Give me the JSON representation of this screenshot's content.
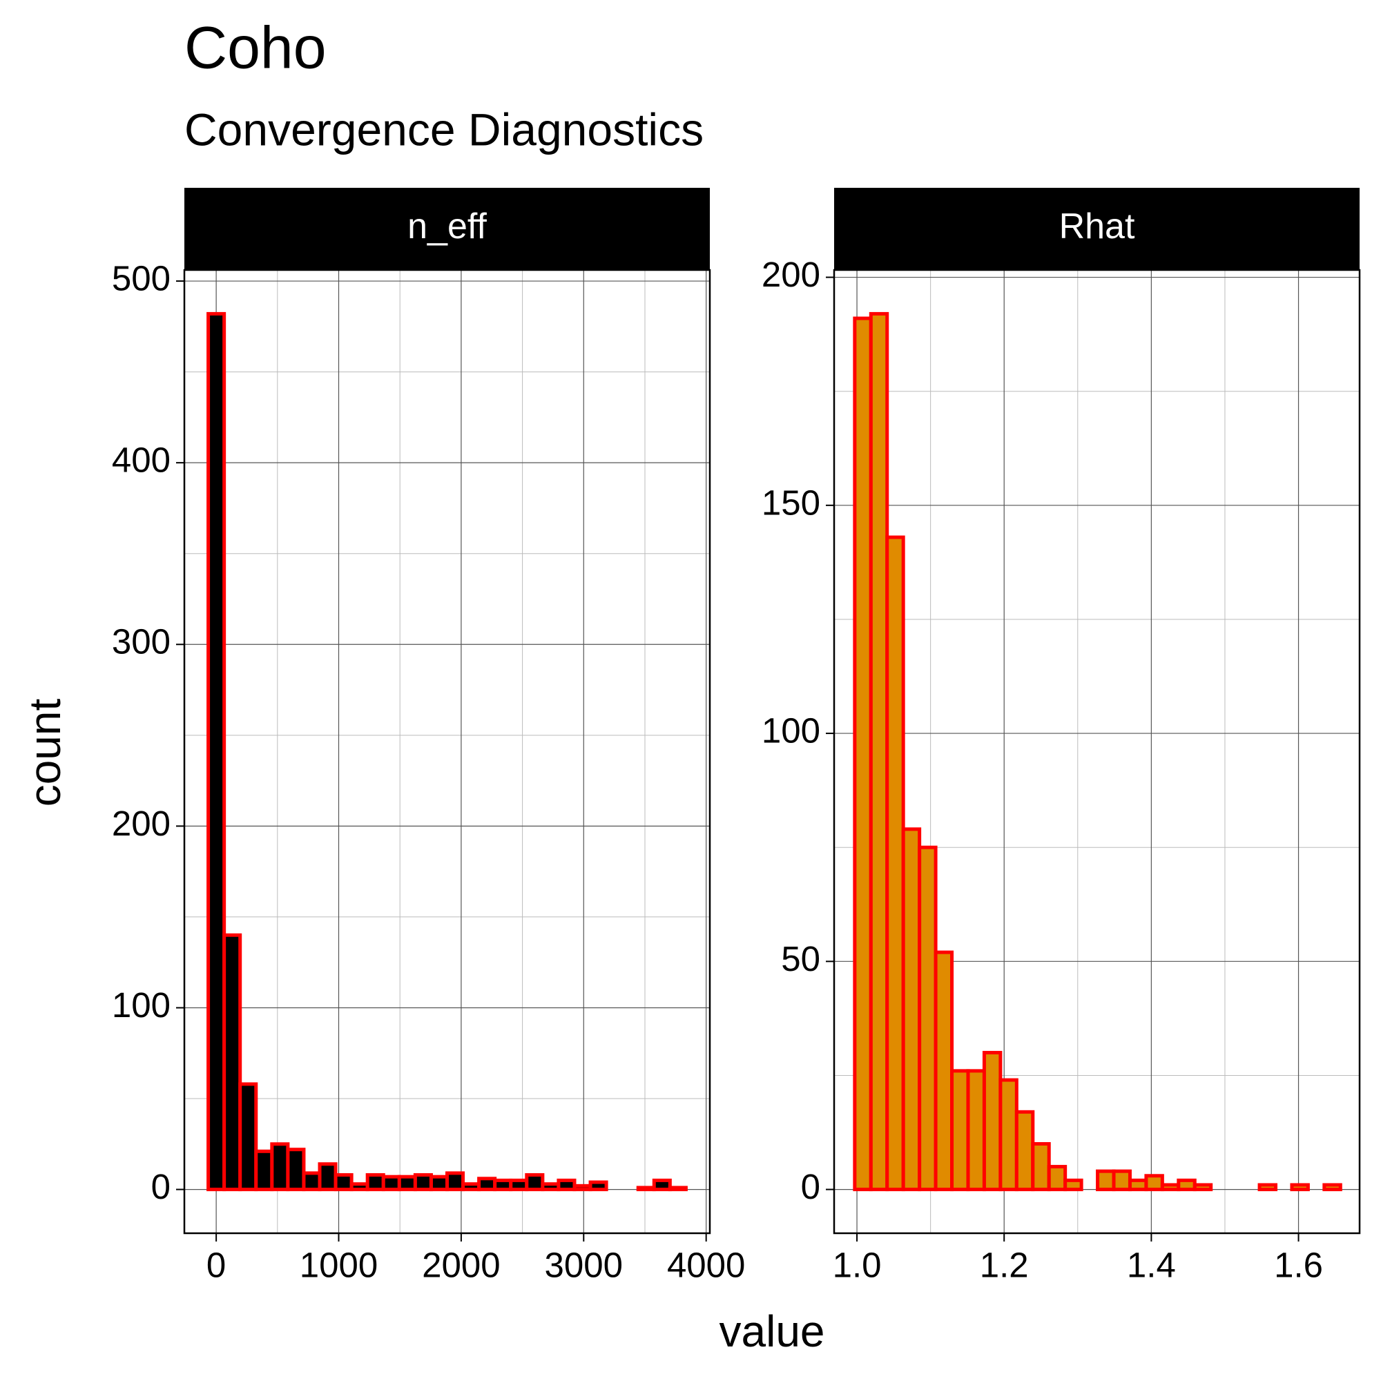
{
  "title": "Coho",
  "subtitle": "Convergence Diagnostics",
  "xlabel": "value",
  "ylabel": "count",
  "chart_data": [
    {
      "type": "histogram",
      "title": "n_eff",
      "color": "#000000",
      "edgecolor": "#ff0000",
      "bins": [
        -65,
        65,
        195,
        325,
        455,
        585,
        715,
        845,
        975,
        1105,
        1235,
        1365,
        1495,
        1625,
        1755,
        1885,
        2015,
        2145,
        2275,
        2405,
        2535,
        2665,
        2795,
        2925,
        3055,
        3185,
        3315,
        3445,
        3575,
        3705,
        3835
      ],
      "values": [
        482,
        140,
        58,
        21,
        25,
        22,
        9,
        14,
        8,
        3,
        8,
        7,
        7,
        8,
        7,
        9,
        3,
        6,
        5,
        5,
        8,
        3,
        5,
        2,
        4,
        0,
        0,
        1,
        5,
        1
      ],
      "xlim": [
        -260,
        4030
      ],
      "ylim": [
        -24.1,
        506.1
      ],
      "xticks": [
        0,
        1000,
        2000,
        3000,
        4000
      ],
      "yticks": [
        0,
        100,
        200,
        300,
        400,
        500
      ],
      "grid": true
    },
    {
      "type": "histogram",
      "title": "Rhat",
      "color": "#e08b00",
      "edgecolor": "#ff0000",
      "bins": [
        0.997,
        1.019,
        1.041,
        1.063,
        1.085,
        1.107,
        1.129,
        1.151,
        1.173,
        1.195,
        1.217,
        1.239,
        1.261,
        1.283,
        1.305,
        1.327,
        1.349,
        1.371,
        1.393,
        1.415,
        1.437,
        1.459,
        1.481,
        1.503,
        1.525,
        1.547,
        1.569,
        1.591,
        1.613,
        1.635,
        1.657
      ],
      "values": [
        191,
        192,
        143,
        79,
        75,
        52,
        26,
        26,
        30,
        24,
        17,
        10,
        5,
        2,
        0,
        4,
        4,
        2,
        3,
        1,
        2,
        1,
        0,
        0,
        0,
        1,
        0,
        1,
        0,
        1
      ],
      "xlim": [
        0.969,
        1.683
      ],
      "ylim": [
        -9.6,
        201.6
      ],
      "xticks": [
        {
          "value": 1,
          "label": "1.0"
        },
        1.2,
        1.4,
        1.6
      ],
      "yticks": [
        0,
        50,
        100,
        150,
        200
      ],
      "grid": true
    }
  ]
}
